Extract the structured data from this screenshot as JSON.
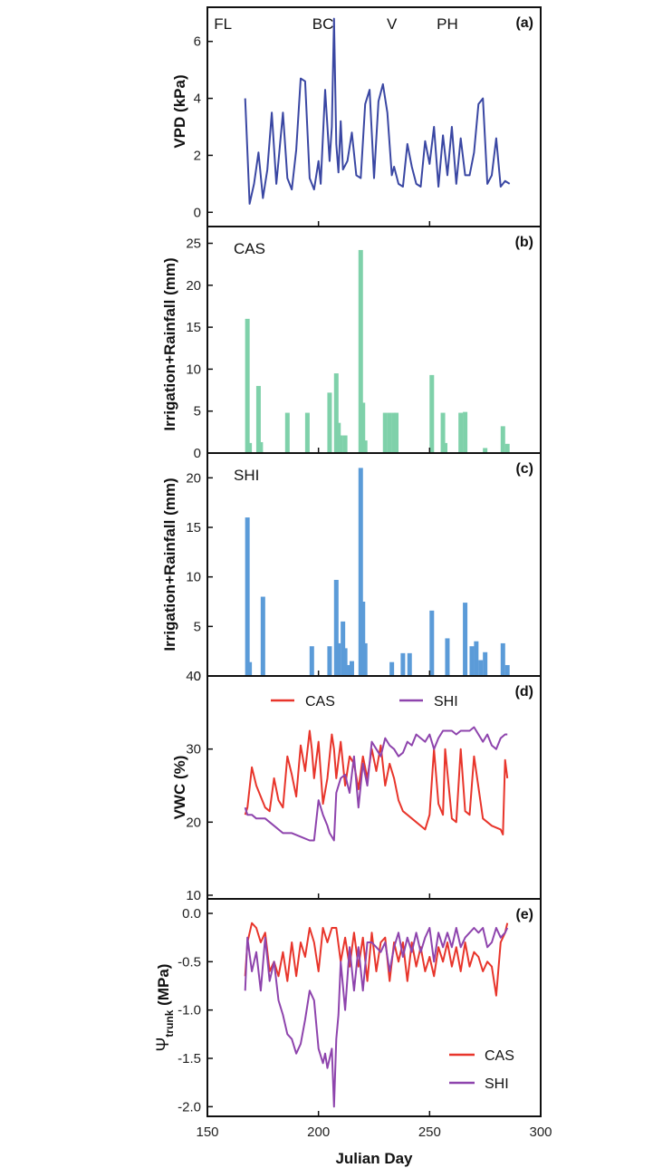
{
  "colors": {
    "vpd": "#3a47a3",
    "cas_bar": "#7fd1aa",
    "shi_bar": "#5b9bd8",
    "cas_line": "#e8352b",
    "shi_line": "#8e44ad",
    "axis": "#111111"
  },
  "chart_data": [
    {
      "type": "line",
      "panel": "a",
      "tag": "(a)",
      "ylabel": "VPD (kPa)",
      "ylim": [
        -0.5,
        7.2
      ],
      "xlim": [
        150,
        300
      ],
      "yticks": [
        "0",
        "2",
        "4",
        "6"
      ],
      "yticks_values": [
        0,
        2,
        4,
        6
      ],
      "annotations": [
        {
          "text": "FL",
          "x": 157
        },
        {
          "text": "BC",
          "x": 202
        },
        {
          "text": "V",
          "x": 233
        },
        {
          "text": "PH",
          "x": 258
        }
      ],
      "series": [
        {
          "name": "VPD",
          "x": [
            167,
            169,
            171,
            173,
            175,
            177,
            179,
            181,
            182,
            184,
            186,
            188,
            190,
            192,
            194,
            196,
            198,
            200,
            201,
            203,
            205,
            206,
            207,
            208,
            209,
            210,
            211,
            213,
            215,
            217,
            219,
            221,
            223,
            225,
            227,
            229,
            231,
            233,
            234,
            236,
            238,
            240,
            242,
            244,
            246,
            248,
            250,
            252,
            254,
            256,
            258,
            260,
            262,
            264,
            266,
            268,
            270,
            272,
            274,
            276,
            278,
            280,
            282,
            284,
            286
          ],
          "values": [
            4.0,
            0.3,
            1.0,
            2.1,
            0.5,
            1.5,
            3.5,
            1.0,
            1.8,
            3.5,
            1.2,
            0.8,
            2.2,
            4.7,
            4.6,
            1.2,
            0.8,
            1.8,
            1.0,
            4.3,
            1.8,
            3.0,
            6.8,
            2.4,
            1.4,
            3.2,
            1.5,
            1.8,
            2.8,
            1.3,
            1.2,
            3.8,
            4.3,
            1.2,
            3.9,
            4.5,
            3.5,
            1.3,
            1.6,
            1.0,
            0.9,
            2.4,
            1.6,
            1.0,
            0.9,
            2.5,
            1.7,
            3.0,
            0.9,
            2.7,
            1.3,
            3.0,
            1.0,
            2.6,
            1.3,
            1.3,
            2.1,
            3.8,
            4.0,
            1.0,
            1.3,
            2.6,
            0.9,
            1.1,
            1.0
          ]
        }
      ]
    },
    {
      "type": "bar",
      "panel": "b",
      "tag": "(b)",
      "label": "CAS",
      "ylabel": "Irrigation+Rainfall  (mm)",
      "ylim": [
        0,
        27
      ],
      "xlim": [
        150,
        300
      ],
      "yticks": [
        "0",
        "5",
        "10",
        "15",
        "20",
        "25"
      ],
      "yticks_values": [
        0,
        5,
        10,
        15,
        20,
        25
      ],
      "x": [
        168,
        169,
        173,
        174,
        186,
        195,
        205,
        208,
        209,
        210,
        212,
        219,
        220,
        221,
        230,
        232,
        234,
        235,
        251,
        256,
        257,
        264,
        266,
        275,
        283,
        285
      ],
      "values": [
        16,
        1.2,
        8,
        1.3,
        4.8,
        4.8,
        7.2,
        9.5,
        3.6,
        2.1,
        2.1,
        24.2,
        6,
        1.5,
        4.8,
        4.8,
        4.8,
        4.8,
        9.3,
        4.8,
        1.2,
        4.8,
        4.9,
        0.6,
        3.2,
        1.1
      ]
    },
    {
      "type": "bar",
      "panel": "c",
      "tag": "(c)",
      "label": "SHI",
      "ylabel": "Irrigation+Rainfall  (mm)",
      "ylim": [
        0,
        22.5
      ],
      "xlim": [
        150,
        300
      ],
      "yticks": [
        "0",
        "5",
        "10",
        "15",
        "20"
      ],
      "yticks_values": [
        0,
        5,
        10,
        15,
        20
      ],
      "x": [
        168,
        169,
        175,
        197,
        205,
        208,
        209,
        211,
        212,
        213,
        215,
        219,
        220,
        221,
        233,
        238,
        241,
        251,
        258,
        266,
        269,
        271,
        273,
        275,
        283,
        285
      ],
      "values": [
        16,
        1.4,
        8,
        3,
        3,
        9.7,
        3.3,
        5.5,
        2.8,
        1.1,
        1.5,
        21,
        7.5,
        3.3,
        1.4,
        2.3,
        2.3,
        6.6,
        3.8,
        7.4,
        3,
        3.5,
        1.6,
        2.4,
        3.3,
        1.1
      ]
    },
    {
      "type": "line",
      "panel": "d",
      "tag": "(d)",
      "ylabel": "VWC (%)",
      "ylim": [
        9.5,
        40
      ],
      "xlim": [
        150,
        300
      ],
      "yticks": [
        "10",
        "20",
        "30",
        "40"
      ],
      "yticks_values": [
        10,
        20,
        30,
        40
      ],
      "legend": [
        "CAS",
        "SHI"
      ],
      "series": [
        {
          "name": "CAS",
          "x": [
            167,
            168,
            170,
            172,
            174,
            176,
            178,
            180,
            182,
            184,
            186,
            188,
            190,
            192,
            194,
            196,
            197,
            198,
            200,
            202,
            204,
            206,
            207,
            208,
            210,
            212,
            214,
            216,
            218,
            220,
            222,
            224,
            226,
            228,
            230,
            232,
            234,
            236,
            238,
            240,
            244,
            248,
            250,
            252,
            254,
            256,
            257,
            260,
            262,
            264,
            266,
            268,
            270,
            274,
            278,
            282,
            283,
            284,
            285
          ],
          "values": [
            21,
            22,
            27.5,
            25,
            23.5,
            22,
            21.5,
            26,
            23,
            22,
            29,
            26.5,
            23.5,
            30.5,
            27,
            32.5,
            30,
            26,
            31,
            22.5,
            26,
            32,
            30,
            26,
            31,
            25,
            29,
            28,
            24.5,
            29,
            26,
            30,
            27,
            30.5,
            25,
            28,
            26,
            23,
            21.5,
            21,
            20,
            19,
            21,
            30,
            22.5,
            21,
            30,
            20.5,
            20,
            30,
            21.5,
            21,
            29,
            20.5,
            19.5,
            19,
            18.3,
            28.5,
            26
          ]
        },
        {
          "name": "SHI",
          "x": [
            167,
            168,
            170,
            172,
            176,
            180,
            184,
            188,
            192,
            196,
            198,
            200,
            202,
            204,
            205,
            206,
            207,
            208,
            210,
            212,
            214,
            216,
            218,
            220,
            222,
            224,
            226,
            228,
            230,
            232,
            234,
            236,
            238,
            240,
            242,
            244,
            246,
            248,
            250,
            252,
            254,
            256,
            258,
            260,
            262,
            264,
            266,
            268,
            270,
            272,
            274,
            276,
            278,
            280,
            282,
            284,
            285
          ],
          "values": [
            22,
            21,
            21,
            20.5,
            20.5,
            19.5,
            18.5,
            18.5,
            18,
            17.5,
            17.5,
            23,
            21,
            19.5,
            18.5,
            18,
            17.5,
            24,
            26,
            26.5,
            24,
            29,
            22,
            28,
            25,
            31,
            30,
            29,
            31.5,
            30.5,
            30,
            29,
            29.5,
            31,
            30.5,
            32,
            31.5,
            31,
            32,
            30,
            31.5,
            32.5,
            32.5,
            32.5,
            32,
            32.5,
            32.5,
            32.5,
            33,
            32,
            31,
            32,
            30.5,
            30,
            31.5,
            32,
            32
          ]
        }
      ]
    },
    {
      "type": "line",
      "panel": "e",
      "tag": "(e)",
      "ylabel": "Ψtrunk (MPa)",
      "ylabel_main": "Ψ",
      "ylabel_sub": "trunk",
      "ylabel_unit": " (MPa)",
      "xlabel": "Julian Day",
      "ylim": [
        -2.1,
        0.15
      ],
      "xlim": [
        150,
        300
      ],
      "xticks": [
        "150",
        "200",
        "250",
        "300"
      ],
      "xticks_values": [
        150,
        200,
        250,
        300
      ],
      "yticks": [
        "0.0",
        "-0.5",
        "-1.0",
        "-1.5",
        "-2.0"
      ],
      "yticks_values": [
        0,
        -0.5,
        -1,
        -1.5,
        -2
      ],
      "legend": [
        "CAS",
        "SHI"
      ],
      "series": [
        {
          "name": "CAS",
          "x": [
            167,
            168,
            170,
            172,
            174,
            176,
            178,
            180,
            182,
            184,
            186,
            188,
            190,
            192,
            194,
            196,
            198,
            200,
            202,
            204,
            206,
            208,
            210,
            212,
            214,
            216,
            218,
            220,
            222,
            224,
            226,
            228,
            230,
            232,
            234,
            236,
            238,
            240,
            242,
            244,
            246,
            248,
            250,
            252,
            254,
            256,
            258,
            260,
            262,
            264,
            266,
            268,
            270,
            272,
            274,
            276,
            278,
            280,
            282,
            284,
            285
          ],
          "values": [
            -0.65,
            -0.3,
            -0.1,
            -0.15,
            -0.3,
            -0.2,
            -0.6,
            -0.5,
            -0.65,
            -0.4,
            -0.7,
            -0.3,
            -0.65,
            -0.3,
            -0.45,
            -0.15,
            -0.3,
            -0.6,
            -0.15,
            -0.3,
            -0.15,
            -0.15,
            -0.5,
            -0.25,
            -0.55,
            -0.2,
            -0.55,
            -0.25,
            -0.7,
            -0.2,
            -0.6,
            -0.3,
            -0.25,
            -0.7,
            -0.3,
            -0.5,
            -0.3,
            -0.7,
            -0.3,
            -0.55,
            -0.35,
            -0.6,
            -0.45,
            -0.65,
            -0.35,
            -0.5,
            -0.3,
            -0.55,
            -0.35,
            -0.6,
            -0.3,
            -0.55,
            -0.4,
            -0.45,
            -0.6,
            -0.5,
            -0.55,
            -0.85,
            -0.3,
            -0.2,
            -0.1
          ]
        },
        {
          "name": "SHI",
          "x": [
            167,
            168,
            170,
            172,
            174,
            176,
            178,
            180,
            182,
            184,
            186,
            188,
            190,
            192,
            194,
            196,
            198,
            200,
            202,
            203,
            204,
            206,
            207,
            208,
            209,
            210,
            212,
            214,
            216,
            218,
            220,
            222,
            224,
            226,
            228,
            230,
            232,
            234,
            236,
            238,
            240,
            242,
            244,
            246,
            248,
            250,
            252,
            254,
            256,
            258,
            260,
            262,
            264,
            266,
            268,
            270,
            272,
            274,
            276,
            278,
            280,
            282,
            284,
            285
          ],
          "values": [
            -0.8,
            -0.25,
            -0.6,
            -0.4,
            -0.8,
            -0.25,
            -0.7,
            -0.5,
            -0.9,
            -1.05,
            -1.25,
            -1.3,
            -1.45,
            -1.35,
            -1.1,
            -0.8,
            -0.9,
            -1.4,
            -1.55,
            -1.45,
            -1.6,
            -1.4,
            -2.0,
            -1.3,
            -1.05,
            -0.5,
            -1.0,
            -0.35,
            -0.8,
            -0.35,
            -0.8,
            -0.3,
            -0.3,
            -0.35,
            -0.4,
            -0.3,
            -0.6,
            -0.35,
            -0.2,
            -0.45,
            -0.25,
            -0.4,
            -0.2,
            -0.4,
            -0.25,
            -0.15,
            -0.5,
            -0.2,
            -0.35,
            -0.2,
            -0.35,
            -0.15,
            -0.35,
            -0.25,
            -0.2,
            -0.15,
            -0.2,
            -0.15,
            -0.35,
            -0.3,
            -0.15,
            -0.25,
            -0.2,
            -0.15
          ]
        }
      ]
    }
  ]
}
